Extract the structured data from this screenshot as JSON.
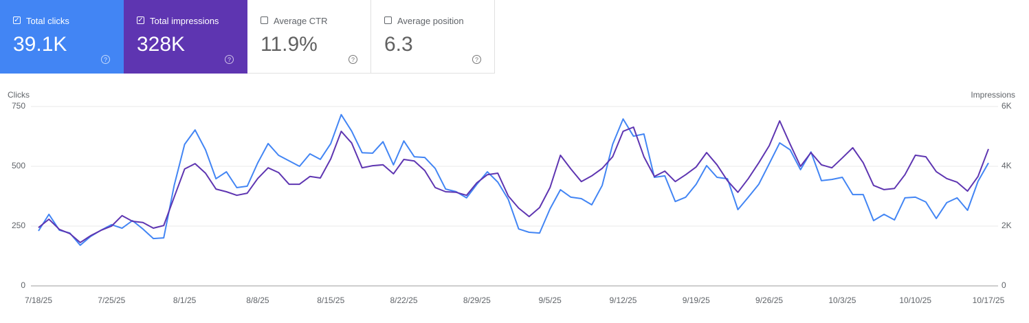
{
  "metrics": [
    {
      "label": "Total clicks",
      "value": "39.1K",
      "checked": true,
      "color": "#4285f4"
    },
    {
      "label": "Total impressions",
      "value": "328K",
      "checked": true,
      "color": "#5e35b1"
    },
    {
      "label": "Average CTR",
      "value": "11.9%",
      "checked": false,
      "color": "#ffffff"
    },
    {
      "label": "Average position",
      "value": "6.3",
      "checked": false,
      "color": "#ffffff"
    }
  ],
  "chart_data": {
    "type": "line",
    "y_label": "Clicks",
    "y2_label": "Impressions",
    "categories": [
      "7/18/25",
      null,
      null,
      null,
      null,
      null,
      null,
      "7/25/25",
      null,
      null,
      null,
      null,
      null,
      null,
      "8/1/25",
      null,
      null,
      null,
      null,
      null,
      null,
      "8/8/25",
      null,
      null,
      null,
      null,
      null,
      null,
      "8/15/25",
      null,
      null,
      null,
      null,
      null,
      null,
      "8/22/25",
      null,
      null,
      null,
      null,
      null,
      null,
      "8/29/25",
      null,
      null,
      null,
      null,
      null,
      null,
      "9/5/25",
      null,
      null,
      null,
      null,
      null,
      null,
      "9/12/25",
      null,
      null,
      null,
      null,
      null,
      null,
      "9/19/25",
      null,
      null,
      null,
      null,
      null,
      null,
      "9/26/25",
      null,
      null,
      null,
      null,
      null,
      null,
      "10/3/25",
      null,
      null,
      null,
      null,
      null,
      null,
      "10/10/25",
      null,
      null,
      null,
      null,
      null,
      null,
      "10/17/25"
    ],
    "series": [
      {
        "name": "Clicks",
        "color": "#4285f4",
        "values": [
          230,
          299,
          233,
          221,
          170,
          207,
          233,
          256,
          241,
          273,
          238,
          198,
          201,
          420,
          592,
          652,
          569,
          448,
          477,
          411,
          417,
          514,
          595,
          546,
          523,
          500,
          552,
          529,
          595,
          716,
          647,
          557,
          555,
          603,
          506,
          606,
          540,
          537,
          491,
          405,
          394,
          368,
          425,
          477,
          434,
          362,
          238,
          224,
          221,
          322,
          402,
          371,
          365,
          339,
          420,
          592,
          698,
          626,
          635,
          454,
          460,
          353,
          371,
          425,
          503,
          454,
          448,
          319,
          371,
          425,
          511,
          598,
          569,
          486,
          560,
          440,
          445,
          454,
          382,
          382,
          273,
          299,
          276,
          368,
          371,
          351,
          282,
          348,
          368,
          316,
          437,
          514
        ]
      },
      {
        "name": "Impressions",
        "color": "#5e35b1",
        "axis": "y2",
        "values": [
          1950,
          2230,
          1890,
          1750,
          1450,
          1680,
          1860,
          2000,
          2350,
          2160,
          2120,
          1930,
          2020,
          2970,
          3910,
          4090,
          3770,
          3240,
          3150,
          3030,
          3100,
          3590,
          3950,
          3790,
          3400,
          3400,
          3660,
          3610,
          4250,
          5170,
          4780,
          3950,
          4020,
          4050,
          3750,
          4230,
          4180,
          3860,
          3290,
          3150,
          3130,
          3030,
          3450,
          3720,
          3770,
          3010,
          2600,
          2320,
          2620,
          3290,
          4370,
          3910,
          3490,
          3680,
          3930,
          4320,
          5170,
          5310,
          4320,
          3660,
          3840,
          3490,
          3720,
          3980,
          4460,
          4050,
          3520,
          3130,
          3590,
          4120,
          4690,
          5520,
          4740,
          4000,
          4460,
          4050,
          3950,
          4280,
          4620,
          4120,
          3360,
          3220,
          3260,
          3720,
          4370,
          4320,
          3820,
          3590,
          3470,
          3170,
          3660,
          4580
        ]
      }
    ],
    "ylim": [
      0,
      750
    ],
    "yticks": [
      0,
      250,
      500,
      750
    ],
    "y2lim": [
      0,
      6000
    ],
    "y2ticks": [
      0,
      {
        "value": 2000,
        "label": "2K"
      },
      {
        "value": 4000,
        "label": "4K"
      },
      {
        "value": 6000,
        "label": "6K"
      }
    ],
    "grid": true
  }
}
